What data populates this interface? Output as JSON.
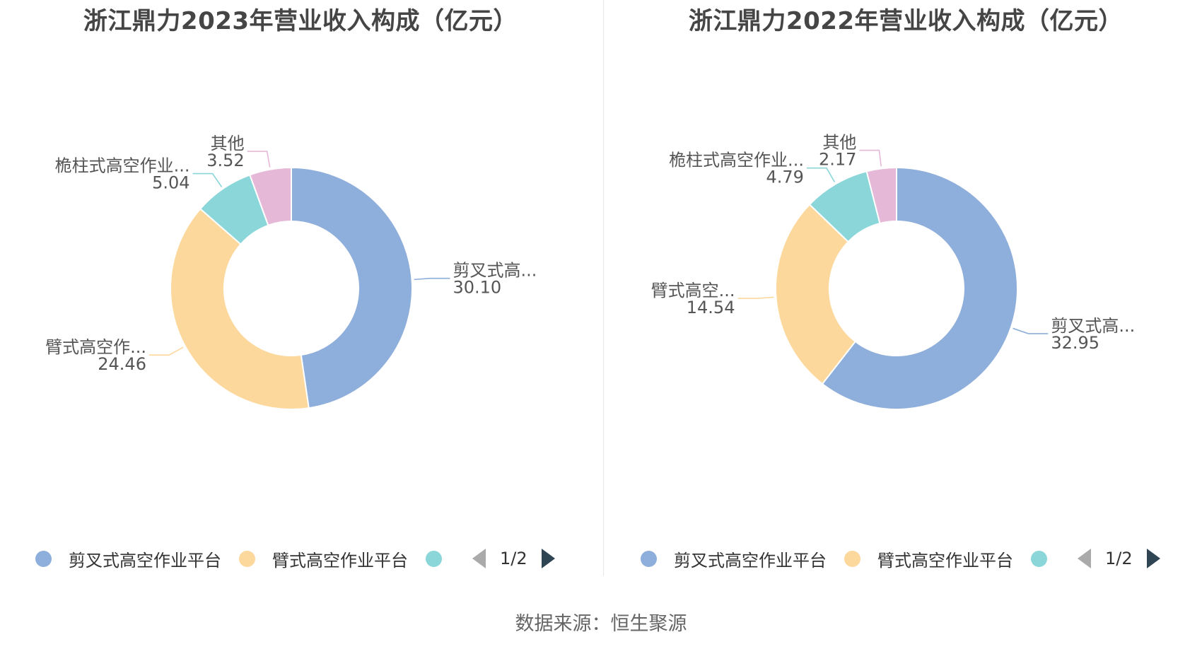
{
  "colors": [
    "#8eaedb",
    "#fdd89c",
    "#8ad6d9",
    "#e6b8d8"
  ],
  "chart_data": [
    {
      "type": "pie",
      "title": "浙江鼎力2023年营业收入构成（亿元）",
      "categories": [
        "剪叉式高空作业平台",
        "臂式高空作业平台",
        "桅柱式高空作业平台",
        "其他"
      ],
      "slice_labels": [
        "剪叉式高...",
        "臂式高空作...",
        "桅柱式高空作业...",
        "其他"
      ],
      "values": [
        30.1,
        24.46,
        5.04,
        3.52
      ],
      "value_labels": [
        "30.10",
        "24.46",
        "5.04",
        "3.52"
      ]
    },
    {
      "type": "pie",
      "title": "浙江鼎力2022年营业收入构成（亿元）",
      "categories": [
        "剪叉式高空作业平台",
        "臂式高空作业平台",
        "桅柱式高空作业平台",
        "其他"
      ],
      "slice_labels": [
        "剪叉式高...",
        "臂式高空...",
        "桅柱式高空作业...",
        "其他"
      ],
      "values": [
        32.95,
        14.54,
        4.79,
        2.17
      ],
      "value_labels": [
        "32.95",
        "14.54",
        "4.79",
        "2.17"
      ]
    }
  ],
  "legend": {
    "items": [
      "剪叉式高空作业平台",
      "臂式高空作业平台"
    ],
    "page": "1/2"
  },
  "source": "数据来源：恒生聚源"
}
